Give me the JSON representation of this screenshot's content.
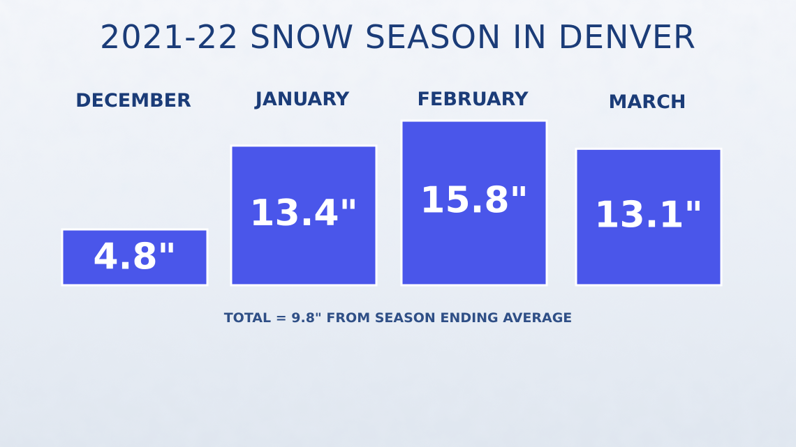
{
  "chart_data": {
    "type": "bar",
    "title": "2021-22 SNOW SEASON IN DENVER",
    "categories": [
      "DECEMBER",
      "JANUARY",
      "FEBRUARY",
      "MARCH"
    ],
    "values": [
      4.8,
      13.4,
      15.8,
      13.1
    ],
    "value_labels": [
      "4.8\"",
      "13.4\"",
      "15.8\"",
      "13.1\""
    ],
    "unit": "inches",
    "annotation": "TOTAL = 9.8\" FROM SEASON ENDING AVERAGE",
    "colors": {
      "bar": "#4a56ea",
      "title": "#1b3c78",
      "annotation": "#2f4f86",
      "background": "#eef2f7"
    }
  }
}
